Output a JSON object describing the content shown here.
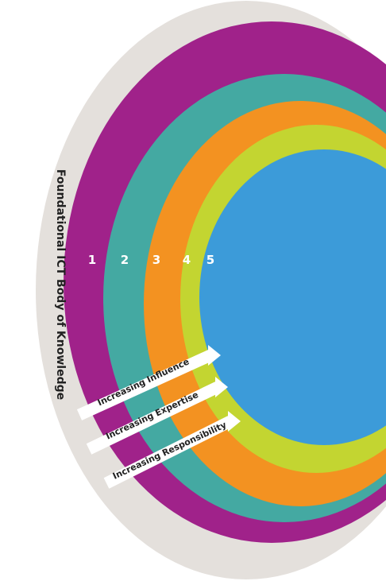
{
  "side_label": "Foundational ICT Body of Knowledge",
  "levels": [
    {
      "label": "1",
      "color": "#a0228a"
    },
    {
      "label": "2",
      "color": "#44a9a2"
    },
    {
      "label": "3",
      "color": "#f39221"
    },
    {
      "label": "4",
      "color": "#c3d531"
    },
    {
      "label": "5",
      "color": "#3c9bd9"
    }
  ],
  "outer_color": "#e4e0dc",
  "label_color": "#222222",
  "level_number_color": "#ffffff",
  "arrows": [
    {
      "label": "Increasing Influence"
    },
    {
      "label": "Increasing Expertise"
    },
    {
      "label": "Increasing Responsibility"
    }
  ]
}
